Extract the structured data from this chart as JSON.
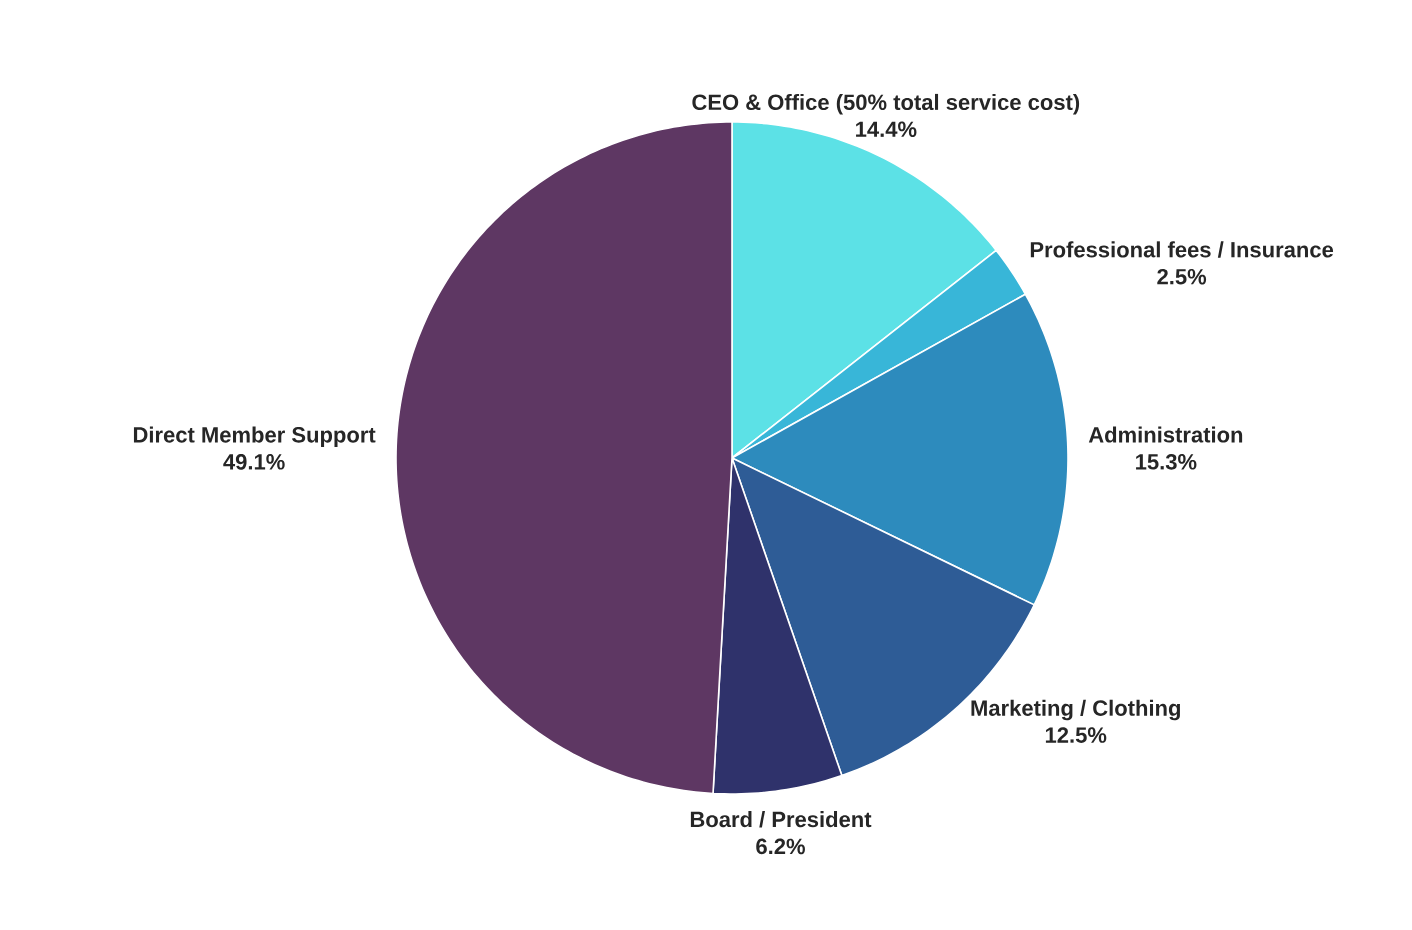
{
  "chart_data": {
    "type": "pie",
    "categories": [
      "CEO & Office (50% total service cost)",
      "Professional fees / Insurance",
      "Administration",
      "Marketing / Clothing",
      "Board / President",
      "Direct Member Support"
    ],
    "values": [
      14.4,
      2.5,
      15.3,
      12.5,
      6.2,
      49.1
    ],
    "value_labels": [
      "14.4%",
      "2.5%",
      "15.3%",
      "12.5%",
      "6.2%",
      "49.1%"
    ],
    "colors": [
      "#5ce1e6",
      "#38b6d8",
      "#2d8bbd",
      "#2e5c96",
      "#2f326b",
      "#5e3763"
    ],
    "legend": false
  }
}
